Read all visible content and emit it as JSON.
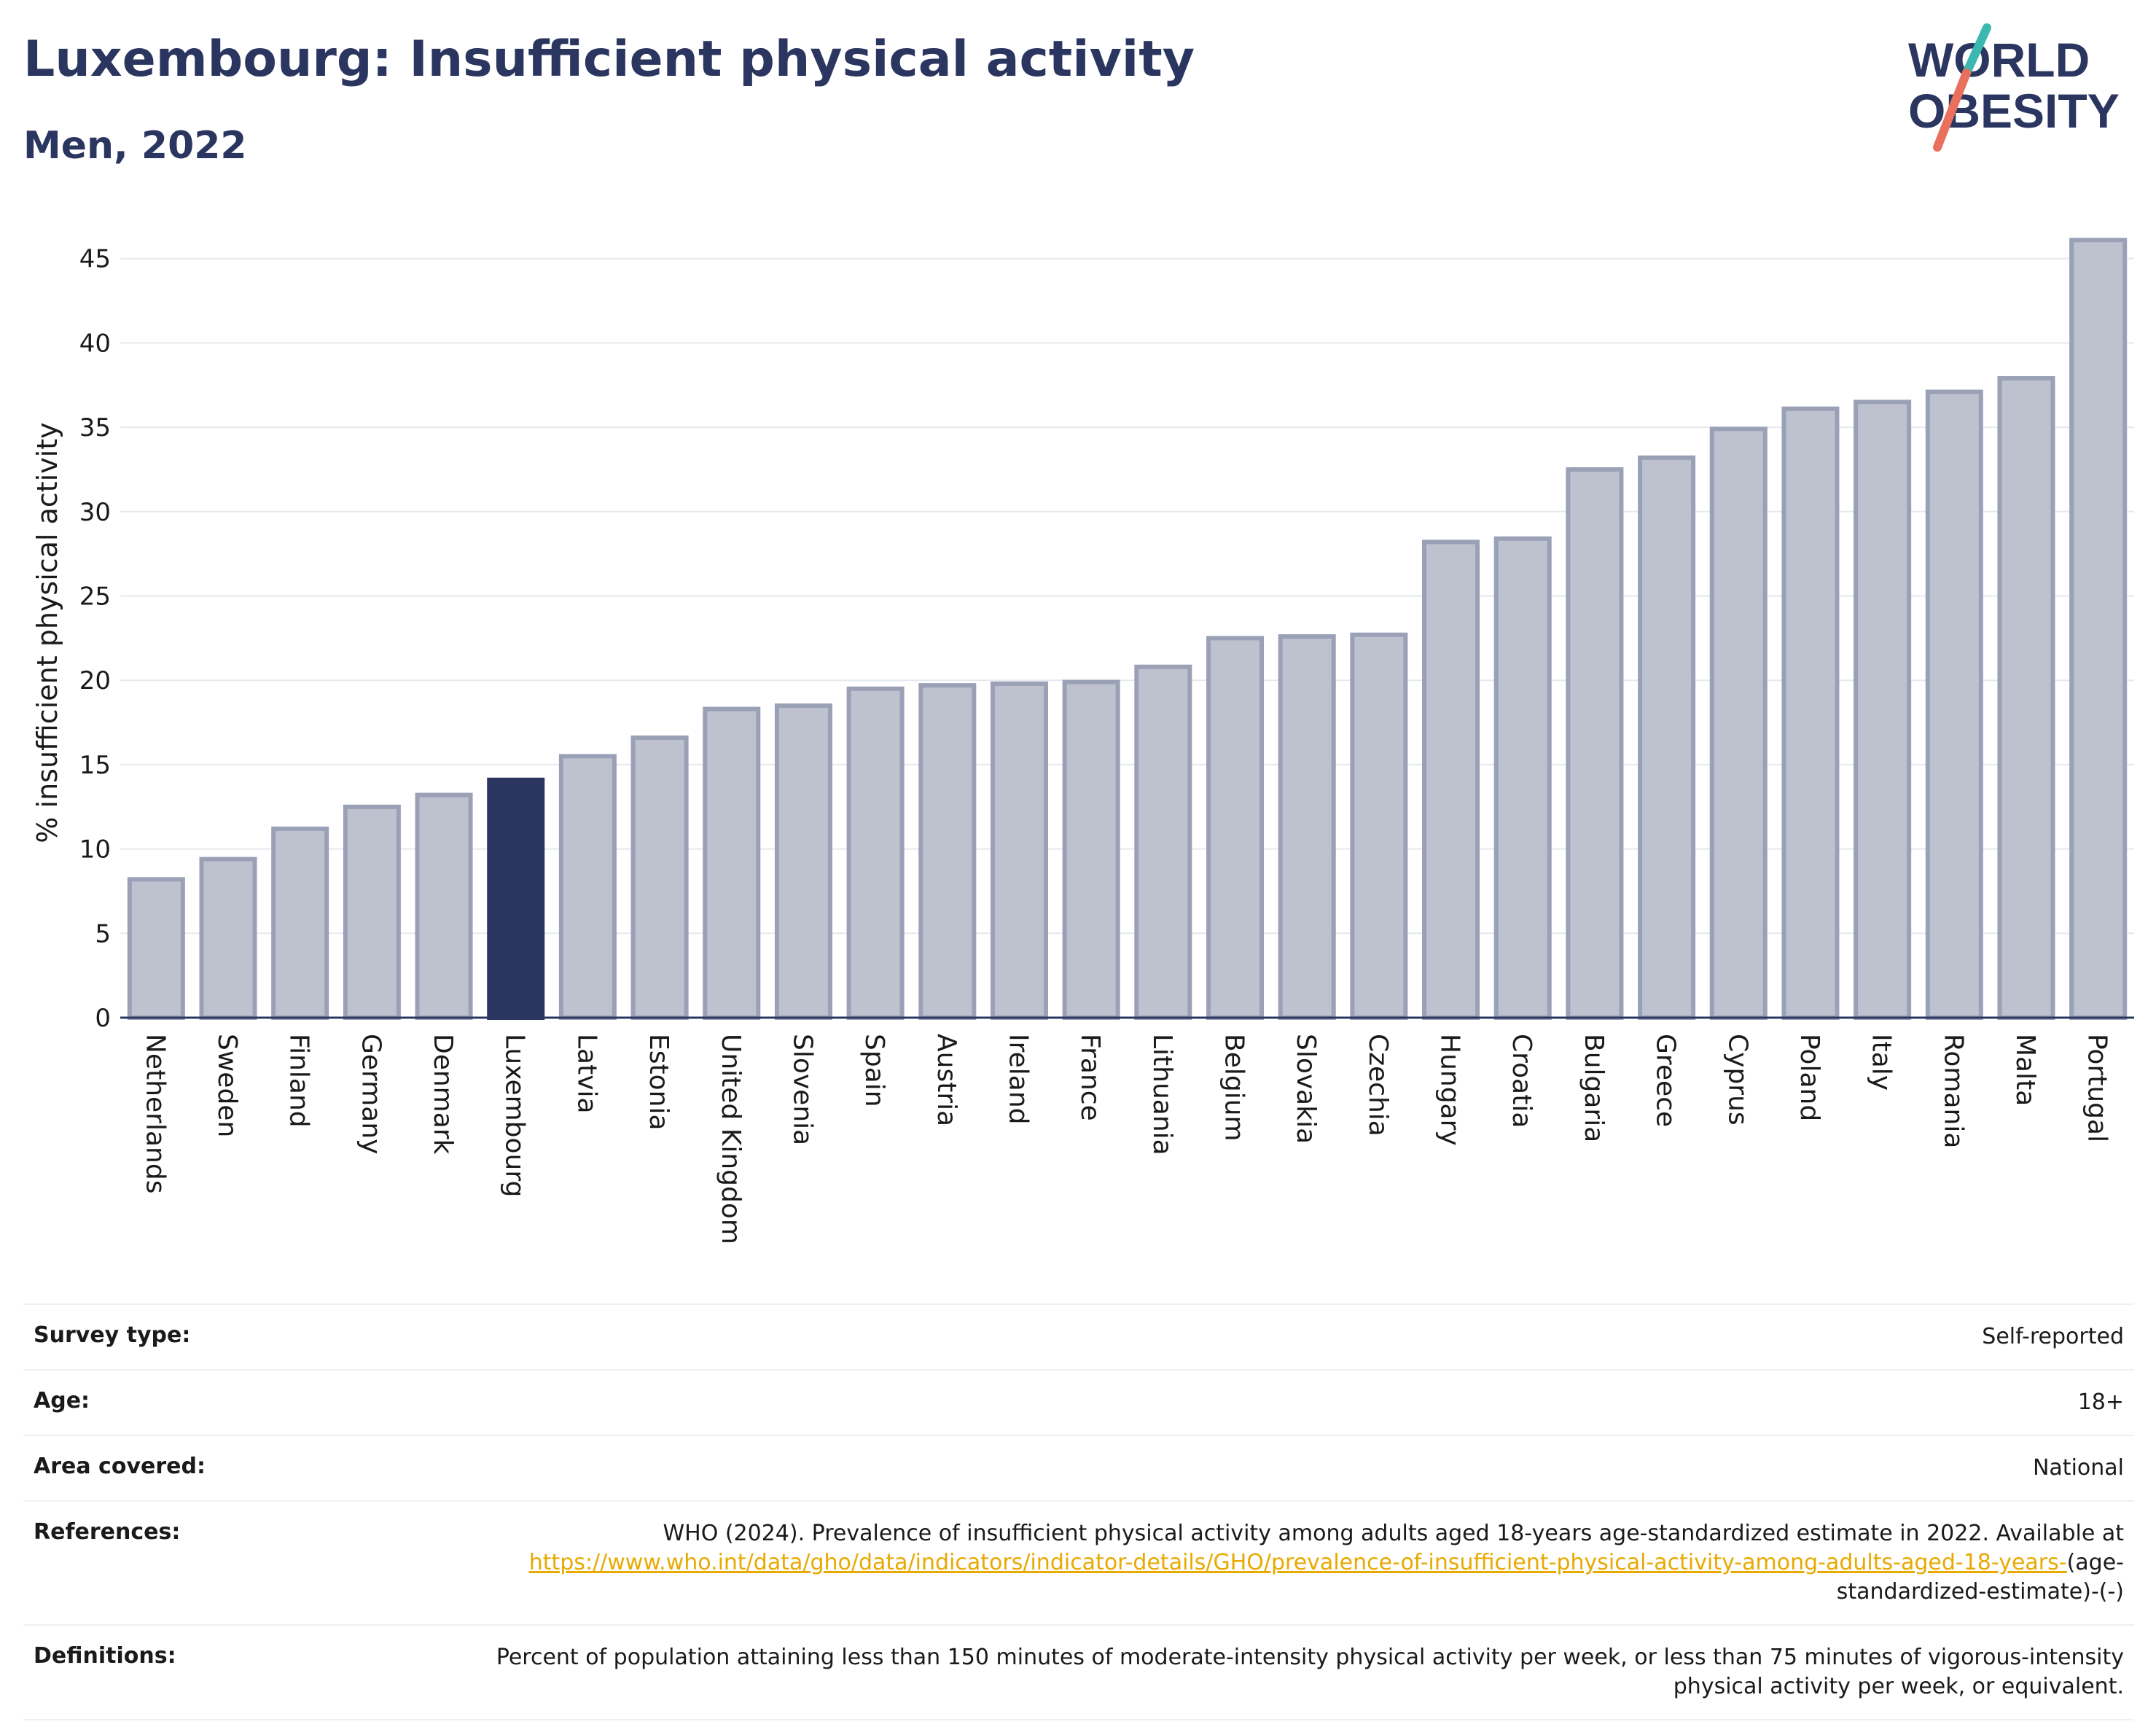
{
  "header": {
    "title": "Luxembourg: Insufficient physical activity",
    "subtitle": "Men, 2022"
  },
  "logo": {
    "line1": "WORLD",
    "line2": "OBESITY",
    "colors": {
      "text": "#2b3660",
      "slash_top": "#3bb8b0",
      "slash_bottom": "#e8705c"
    }
  },
  "chart_data": {
    "type": "bar",
    "title": "",
    "xlabel": "",
    "ylabel": "% insufficient physical activity",
    "ylim": [
      0,
      46.5
    ],
    "yticks": [
      0,
      5,
      10,
      15,
      20,
      25,
      30,
      35,
      40,
      45
    ],
    "grid": true,
    "highlight": "Luxembourg",
    "colors": {
      "bar": "#bec1ce",
      "bar_border": "#9aa0b6",
      "highlight": "#2b3660",
      "grid": "#e6e8ee"
    },
    "categories": [
      "Netherlands",
      "Sweden",
      "Finland",
      "Germany",
      "Denmark",
      "Luxembourg",
      "Latvia",
      "Estonia",
      "United Kingdom",
      "Slovenia",
      "Spain",
      "Austria",
      "Ireland",
      "France",
      "Lithuania",
      "Belgium",
      "Slovakia",
      "Czechia",
      "Hungary",
      "Croatia",
      "Bulgaria",
      "Greece",
      "Cyprus",
      "Poland",
      "Italy",
      "Romania",
      "Malta",
      "Portugal"
    ],
    "values": [
      8.2,
      9.4,
      11.2,
      12.5,
      13.2,
      14.1,
      15.5,
      16.6,
      18.3,
      18.5,
      19.5,
      19.7,
      19.8,
      19.9,
      20.8,
      22.5,
      22.6,
      22.7,
      28.2,
      28.4,
      32.5,
      33.2,
      34.9,
      36.1,
      36.5,
      37.1,
      37.9,
      46.1
    ]
  },
  "info": {
    "survey_type_label": "Survey type:",
    "survey_type_value": "Self-reported",
    "age_label": "Age:",
    "age_value": "18+",
    "area_label": "Area covered:",
    "area_value": "National",
    "references_label": "References:",
    "references_text": "WHO (2024). Prevalence of insufficient physical activity among adults aged 18-years age-standardized estimate in 2022. Available at",
    "references_link": "https://www.who.int/data/gho/data/indicators/indicator-details/GHO/prevalence-of-insufficient-physical-activity-among-adults-aged-18-years-",
    "references_suffix": "(age-standardized-estimate)-(-)",
    "definitions_label": "Definitions:",
    "definitions_text": "Percent of population attaining less than 150 minutes of moderate-intensity physical activity per week, or less than 75 minutes of vigorous-intensity physical activity per week, or equivalent."
  }
}
